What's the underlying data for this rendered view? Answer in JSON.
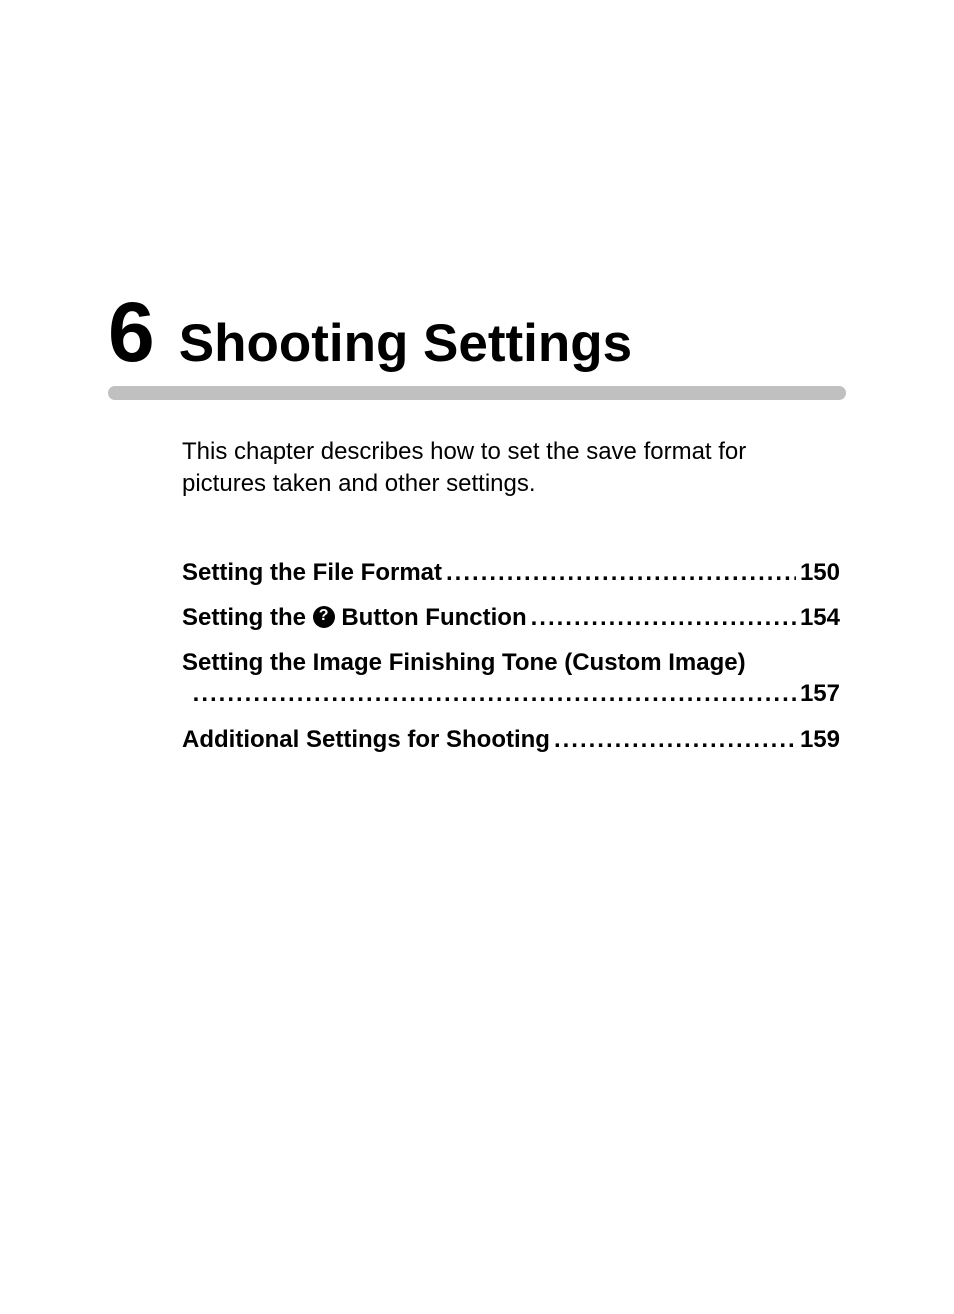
{
  "chapter": {
    "number": "6",
    "title": "Shooting Settings",
    "number_fontsize": 84,
    "title_fontsize": 53,
    "title_color": "#000000"
  },
  "divider": {
    "color": "#c0c0c0",
    "height": 14,
    "radius": 7
  },
  "intro": {
    "text": "This chapter describes how to set the save format for pictures taken and other settings.",
    "fontsize": 24,
    "color": "#000000"
  },
  "toc": {
    "fontsize": 24,
    "fontweight": "bold",
    "entries": [
      {
        "label": "Setting the File Format",
        "page": "150",
        "has_icon": false
      },
      {
        "label_prefix": "Setting the ",
        "label_suffix": " Button Function",
        "icon_glyph": "?",
        "page": "154",
        "has_icon": true
      },
      {
        "label": "Setting the Image Finishing Tone (Custom Image)",
        "page": "157",
        "has_icon": false,
        "wraps": true
      },
      {
        "label": "Additional Settings for Shooting",
        "page": "159",
        "has_icon": false
      }
    ]
  },
  "page_bg": "#ffffff"
}
